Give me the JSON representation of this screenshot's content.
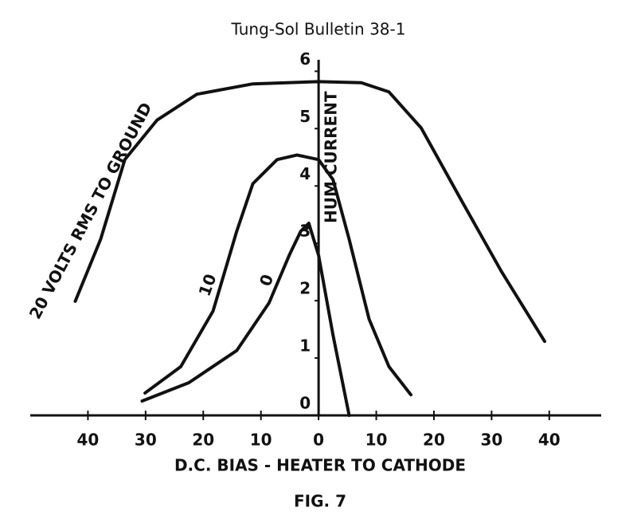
{
  "chart_data": {
    "type": "line",
    "title": "Tung-Sol Bulletin 38-1",
    "caption": "FIG. 7",
    "x_label": "D.C. BIAS - HEATER TO CATHODE",
    "y_label": "HUM CURRENT",
    "xlim": [
      -50,
      49
    ],
    "ylim": [
      0,
      6.2
    ],
    "xticks": [
      {
        "value": -40,
        "label": "40"
      },
      {
        "value": -30,
        "label": "30"
      },
      {
        "value": -20,
        "label": "20"
      },
      {
        "value": -10,
        "label": "10"
      },
      0,
      10,
      20,
      30,
      40
    ],
    "yticks": [
      0,
      1,
      2,
      3,
      4,
      5,
      6
    ],
    "color": "#111111",
    "series": [
      {
        "name": "20 VOLTS RMS TO GROUND",
        "x": [
          -42.2,
          -37.8,
          -33.6,
          -28,
          -21.1,
          -11.4,
          0,
          7.4,
          12.2,
          17.8,
          24.7,
          31.7,
          39.2
        ],
        "values": [
          1.99,
          3.07,
          4.46,
          5.15,
          5.6,
          5.78,
          5.82,
          5.8,
          5.64,
          5.01,
          3.76,
          2.51,
          1.29
        ]
      },
      {
        "name": "10",
        "x": [
          -30.1,
          -23.9,
          -18.3,
          -14.2,
          -11.4,
          -7.2,
          -3.75,
          0,
          2.5,
          5.3,
          8.75,
          12.2,
          16
        ],
        "values": [
          0.39,
          0.85,
          1.82,
          3.21,
          4.04,
          4.46,
          4.54,
          4.46,
          4.11,
          3.07,
          1.68,
          0.85,
          0.36
        ]
      },
      {
        "name": "0",
        "x": [
          -30.6,
          -22.5,
          -14.2,
          -8.6,
          -5.1,
          -3.1,
          -1.7,
          0,
          2.5,
          5.3
        ],
        "values": [
          0.25,
          0.57,
          1.13,
          1.96,
          2.79,
          3.21,
          3.35,
          2.79,
          1.4,
          0
        ]
      }
    ]
  }
}
